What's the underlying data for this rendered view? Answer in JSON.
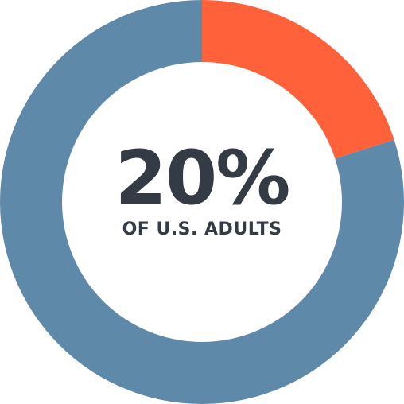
{
  "chart_data": {
    "type": "pie",
    "title": "",
    "center_value": "20%",
    "center_label": "OF U.S. ADULTS",
    "slices": [
      {
        "label": "",
        "value": 20,
        "color": "#ff623b"
      },
      {
        "label": "",
        "value": 80,
        "color": "#5e89a8"
      }
    ]
  },
  "colors": {
    "highlight": "#ff623b",
    "base": "#5e89a8",
    "text": "#343b45"
  }
}
